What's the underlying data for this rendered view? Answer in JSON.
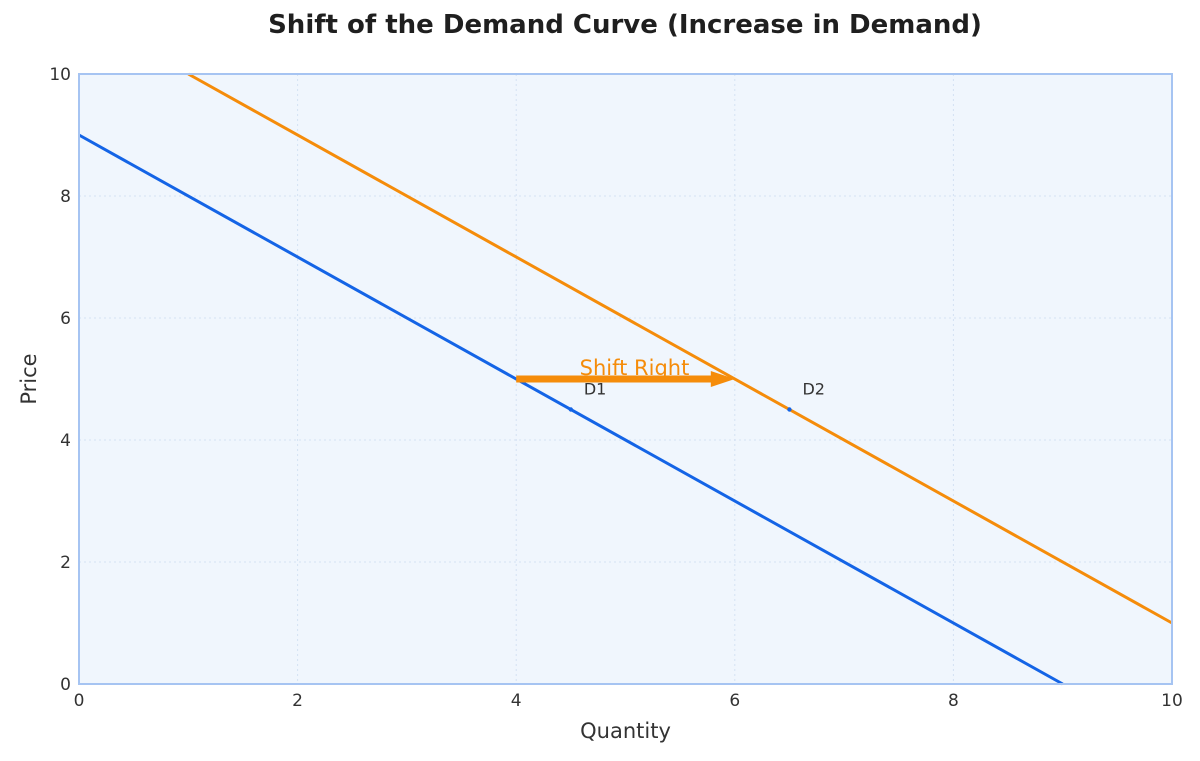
{
  "chart_data": {
    "type": "line",
    "title": "Shift of the Demand Curve (Increase in Demand)",
    "xlabel": "Quantity",
    "ylabel": "Price",
    "xlim": [
      0,
      10
    ],
    "ylim": [
      0,
      10
    ],
    "xticks": [
      0,
      2,
      4,
      6,
      8,
      10
    ],
    "yticks": [
      0,
      2,
      4,
      6,
      8,
      10
    ],
    "grid": true,
    "series": [
      {
        "name": "D1",
        "color": "#1464e6",
        "x": [
          0,
          9
        ],
        "y": [
          9,
          0
        ]
      },
      {
        "name": "D2",
        "color": "#f58c0a",
        "x": [
          1,
          10
        ],
        "y": [
          10,
          1
        ]
      }
    ],
    "labels": [
      {
        "text": "D1",
        "point": [
          4.5,
          4.5
        ]
      },
      {
        "text": "D2",
        "point": [
          6.5,
          4.5
        ]
      }
    ],
    "annotations": [
      {
        "text": "Shift Right",
        "from": [
          4,
          5
        ],
        "to": [
          6,
          5
        ],
        "color": "#f58c0a"
      }
    ],
    "plot_background": "#f0f6fd",
    "frame_color": "#a6c4f2"
  }
}
